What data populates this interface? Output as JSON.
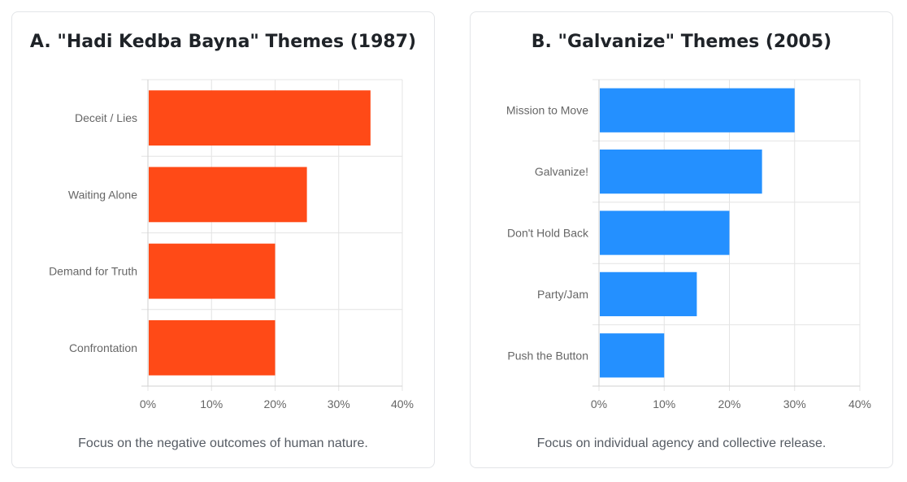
{
  "chart_data": [
    {
      "type": "bar",
      "orientation": "horizontal",
      "title": "A. \"Hadi Kedba Bayna\" Themes (1987)",
      "categories": [
        "Deceit / Lies",
        "Waiting Alone",
        "Demand for Truth",
        "Confrontation"
      ],
      "values": [
        35,
        25,
        20,
        20
      ],
      "xlim": [
        0,
        40
      ],
      "xticks": [
        "0%",
        "10%",
        "20%",
        "30%",
        "40%"
      ],
      "color": "#ff4a17",
      "caption": "Focus on the negative outcomes of human nature.",
      "grid": true
    },
    {
      "type": "bar",
      "orientation": "horizontal",
      "title": "B. \"Galvanize\" Themes (2005)",
      "categories": [
        "Mission to Move",
        "Galvanize!",
        "Don't Hold Back",
        "Party/Jam",
        "Push the Button"
      ],
      "values": [
        30,
        25,
        20,
        15,
        10
      ],
      "xlim": [
        0,
        40
      ],
      "xticks": [
        "0%",
        "10%",
        "20%",
        "30%",
        "40%"
      ],
      "color": "#2490ff",
      "caption": "Focus on individual agency and collective release.",
      "grid": true
    }
  ]
}
